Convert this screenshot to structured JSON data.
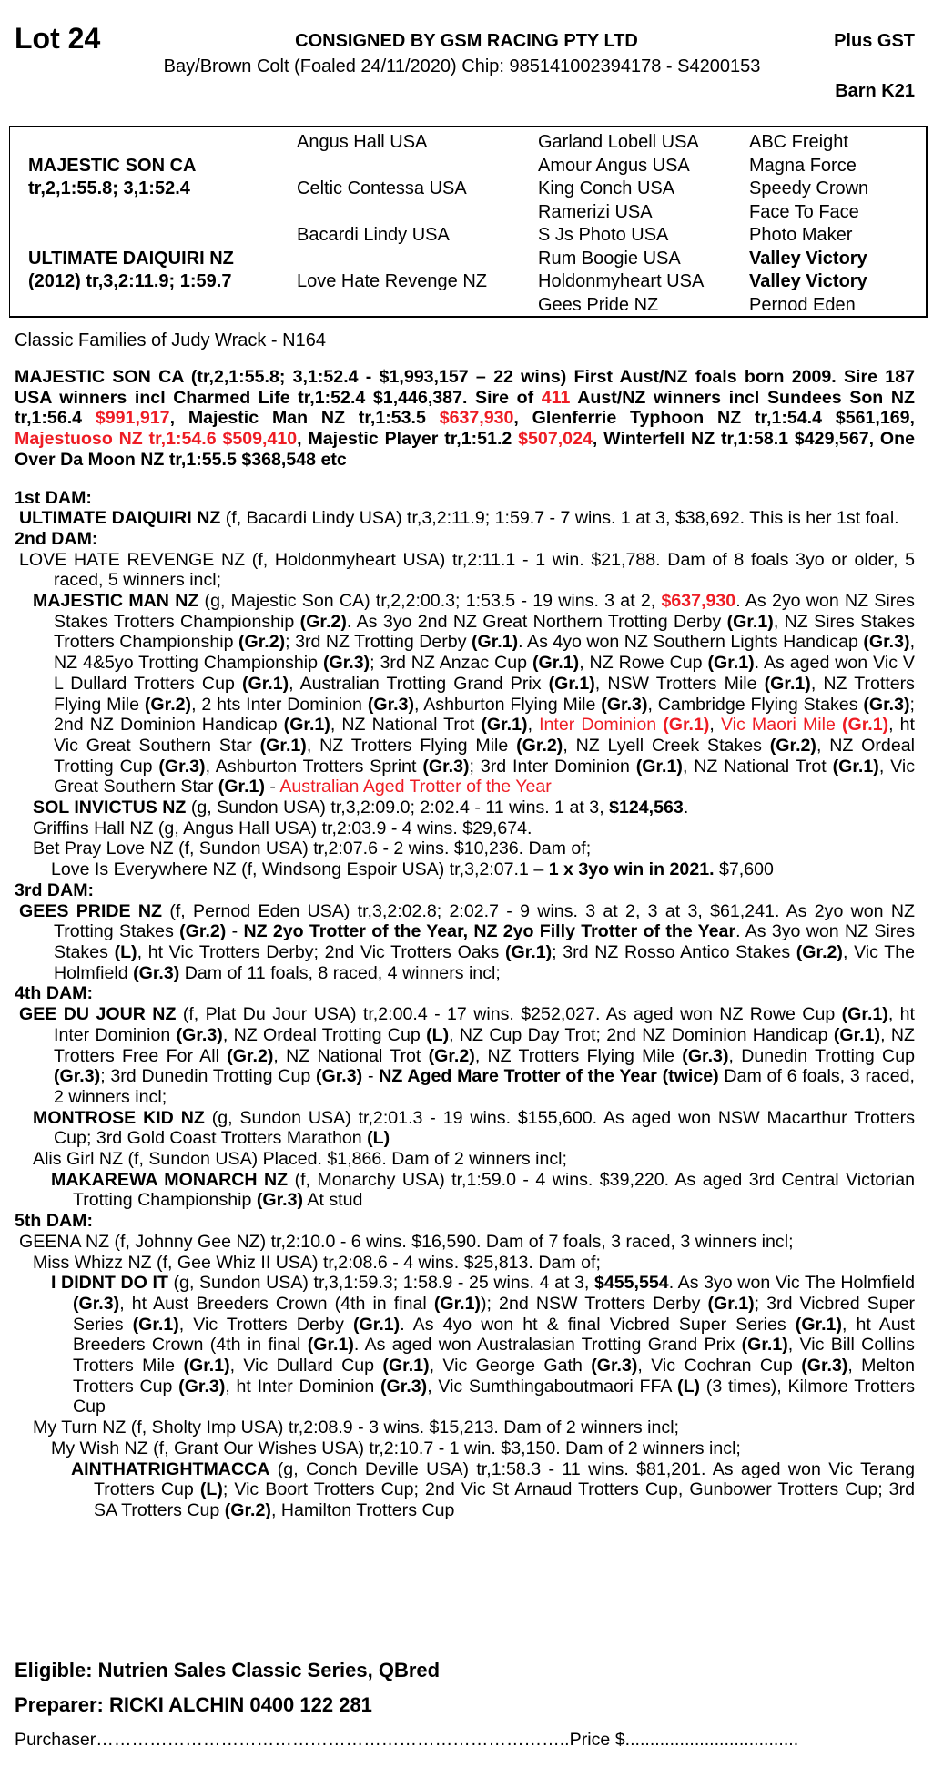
{
  "header": {
    "lot": "Lot 24",
    "consigned": "CONSIGNED BY GSM RACING PTY LTD",
    "plus_gst": "Plus GST",
    "description": "Bay/Brown Colt (Foaled 24/11/2020) Chip: 985141002394178 - S4200153",
    "barn": "Barn K21"
  },
  "pedigree": {
    "sire": {
      "name": "MAJESTIC SON CA",
      "record": "tr,2,1:55.8; 3,1:52.4"
    },
    "dam": {
      "name": "ULTIMATE DAIQUIRI NZ",
      "record": "(2012) tr,3,2:11.9; 1:59.7"
    },
    "gen2": [
      "Angus Hall USA",
      "Celtic Contessa USA",
      "Bacardi Lindy USA",
      "Love Hate Revenge NZ"
    ],
    "gen3": [
      "Garland Lobell USA",
      "Amour Angus USA",
      "King Conch USA",
      "Ramerizi USA",
      "S Js Photo USA",
      "Rum Boogie USA",
      "Holdonmyheart USA",
      "Gees Pride NZ"
    ],
    "gen4": [
      {
        "name": "ABC Freight",
        "bold": false
      },
      {
        "name": "Magna Force",
        "bold": false
      },
      {
        "name": "Speedy Crown",
        "bold": false
      },
      {
        "name": "Face To Face",
        "bold": false
      },
      {
        "name": "Photo Maker",
        "bold": false
      },
      {
        "name": "Valley Victory",
        "bold": true
      },
      {
        "name": "Valley Victory",
        "bold": true
      },
      {
        "name": "Pernod Eden",
        "bold": false
      }
    ]
  },
  "family": "Classic Families of Judy Wrack - N164",
  "sire_paragraph": [
    [
      "MAJESTIC SON CA",
      "b"
    ],
    [
      " (tr,2,1:55.8; 3,1:52.4 - $1,993,157 – 22 wins) ",
      ""
    ],
    [
      "First Aust/NZ foals born 2009. Sire 187 USA winners incl Charmed Life tr,1:52.4 $1,446,387. Sire of ",
      "b"
    ],
    [
      "411",
      "rb"
    ],
    [
      " Aust/NZ winners incl Sundees Son NZ tr,1:56.4 ",
      "b"
    ],
    [
      "$991,917",
      "rb"
    ],
    [
      ", Majestic Man NZ tr,1:53.5 ",
      "b"
    ],
    [
      "$637,930",
      "rb"
    ],
    [
      ", Glenferrie Typhoon NZ tr,1:54.4 $561,169, ",
      "b"
    ],
    [
      "Majestuoso NZ tr,1:54.6 $509,410",
      "rb"
    ],
    [
      ", Majestic Player tr,1:51.2 ",
      "b"
    ],
    [
      "$507,024",
      "rb"
    ],
    [
      ", Winterfell NZ tr,1:58.1 $429,567, One Over Da Moon NZ tr,1:55.5 $368,548 etc",
      "b"
    ]
  ],
  "entries": [
    {
      "level": "h",
      "segments": [
        [
          "1st DAM:",
          "b"
        ]
      ]
    },
    {
      "level": "1",
      "segments": [
        [
          "ULTIMATE DAIQUIRI NZ",
          "b"
        ],
        [
          " (f, Bacardi Lindy USA) tr,3,2:11.9; 1:59.7 - 7 wins. 1 at 3, $38,692. This is her 1st foal.",
          ""
        ]
      ]
    },
    {
      "level": "h",
      "segments": [
        [
          "2nd DAM:",
          "b"
        ]
      ]
    },
    {
      "level": "1",
      "segments": [
        [
          "LOVE HATE REVENGE NZ (f, Holdonmyheart USA) tr,2:11.1 - 1 win. $21,788. Dam of 8 foals 3yo or older, 5 raced, 5 winners incl;",
          ""
        ]
      ]
    },
    {
      "level": "2",
      "segments": [
        [
          "MAJESTIC MAN NZ",
          "b"
        ],
        [
          " (g, Majestic Son CA) tr,2,2:00.3; 1:53.5 - 19 wins. 3 at 2, ",
          ""
        ],
        [
          "$637,930",
          "rb"
        ],
        [
          ". As 2yo won NZ Sires Stakes Trotters Championship ",
          ""
        ],
        [
          "(Gr.2)",
          "b"
        ],
        [
          ". As 3yo 2nd NZ Great Northern Trotting Derby ",
          ""
        ],
        [
          "(Gr.1)",
          "b"
        ],
        [
          ", NZ Sires Stakes Trotters Championship ",
          ""
        ],
        [
          "(Gr.2)",
          "b"
        ],
        [
          "; 3rd NZ Trotting Derby ",
          ""
        ],
        [
          "(Gr.1)",
          "b"
        ],
        [
          ". As 4yo won NZ Southern Lights Handicap ",
          ""
        ],
        [
          "(Gr.3)",
          "b"
        ],
        [
          ", NZ 4&5yo Trotting Championship ",
          ""
        ],
        [
          "(Gr.3)",
          "b"
        ],
        [
          "; 3rd NZ Anzac Cup ",
          ""
        ],
        [
          "(Gr.1)",
          "b"
        ],
        [
          ", NZ Rowe Cup ",
          ""
        ],
        [
          "(Gr.1)",
          "b"
        ],
        [
          ". As aged won Vic V L Dullard Trotters Cup ",
          ""
        ],
        [
          "(Gr.1)",
          "b"
        ],
        [
          ", Australian Trotting Grand Prix ",
          ""
        ],
        [
          "(Gr.1)",
          "b"
        ],
        [
          ", NSW Trotters Mile ",
          ""
        ],
        [
          "(Gr.1)",
          "b"
        ],
        [
          ", NZ Trotters Flying Mile ",
          ""
        ],
        [
          "(Gr.2)",
          "b"
        ],
        [
          ", 2 hts Inter Dominion ",
          ""
        ],
        [
          "(Gr.3)",
          "b"
        ],
        [
          ", Ashburton Flying Mile ",
          ""
        ],
        [
          "(Gr.3)",
          "b"
        ],
        [
          ", Cambridge Flying Stakes ",
          ""
        ],
        [
          "(Gr.3)",
          "b"
        ],
        [
          "; 2nd NZ Dominion Handicap ",
          ""
        ],
        [
          "(Gr.1)",
          "b"
        ],
        [
          ", NZ National Trot ",
          ""
        ],
        [
          "(Gr.1)",
          "b"
        ],
        [
          ", ",
          ""
        ],
        [
          "Inter Dominion ",
          "r"
        ],
        [
          "(Gr.1)",
          "rb"
        ],
        [
          ", ",
          ""
        ],
        [
          "Vic Maori Mile ",
          "r"
        ],
        [
          "(Gr.1)",
          "rb"
        ],
        [
          ", ht Vic Great Southern Star ",
          ""
        ],
        [
          "(Gr.1)",
          "b"
        ],
        [
          ", NZ Trotters Flying Mile ",
          ""
        ],
        [
          "(Gr.2)",
          "b"
        ],
        [
          ", NZ Lyell Creek Stakes ",
          ""
        ],
        [
          "(Gr.2)",
          "b"
        ],
        [
          ", NZ Ordeal Trotting Cup ",
          ""
        ],
        [
          "(Gr.3)",
          "b"
        ],
        [
          ", Ashburton Trotters Sprint ",
          ""
        ],
        [
          "(Gr.3)",
          "b"
        ],
        [
          "; 3rd Inter Dominion ",
          ""
        ],
        [
          "(Gr.1)",
          "b"
        ],
        [
          ", NZ National Trot ",
          ""
        ],
        [
          "(Gr.1)",
          "b"
        ],
        [
          ", Vic Great Southern Star ",
          ""
        ],
        [
          "(Gr.1)",
          "b"
        ],
        [
          " - ",
          ""
        ],
        [
          "Australian Aged Trotter of the Year",
          "r"
        ]
      ]
    },
    {
      "level": "2",
      "segments": [
        [
          "SOL INVICTUS NZ",
          "b"
        ],
        [
          " (g, Sundon USA) tr,3,2:09.0; 2:02.4 - 11 wins. 1 at 3, ",
          ""
        ],
        [
          "$124,563",
          "b"
        ],
        [
          ".",
          ""
        ]
      ]
    },
    {
      "level": "2",
      "segments": [
        [
          "Griffins Hall NZ (g, Angus Hall USA) tr,2:03.9 - 4 wins. $29,674.",
          ""
        ]
      ]
    },
    {
      "level": "2",
      "segments": [
        [
          "Bet Pray Love NZ (f, Sundon USA) tr,2:07.6 - 2 wins. $10,236. Dam of;",
          ""
        ]
      ]
    },
    {
      "level": "3",
      "segments": [
        [
          "Love Is Everywhere NZ (f, Windsong Espoir USA) tr,3,2:07.1 – ",
          ""
        ],
        [
          "1 x 3yo win in 2021.",
          "b"
        ],
        [
          " $7,600",
          ""
        ]
      ]
    },
    {
      "level": "h",
      "segments": [
        [
          "3rd DAM:",
          "b"
        ]
      ]
    },
    {
      "level": "1",
      "segments": [
        [
          "GEES PRIDE NZ",
          "b"
        ],
        [
          " (f, Pernod Eden USA) tr,3,2:02.8; 2:02.7 - 9 wins. 3 at 2, 3 at 3, $61,241. As 2yo won NZ Trotting Stakes ",
          ""
        ],
        [
          "(Gr.2)",
          "b"
        ],
        [
          " - ",
          ""
        ],
        [
          "NZ 2yo Trotter of the Year, NZ 2yo Filly Trotter of the Year",
          "b"
        ],
        [
          ". As 3yo won NZ Sires Stakes ",
          ""
        ],
        [
          "(L)",
          "b"
        ],
        [
          ", ht Vic Trotters Derby; 2nd Vic Trotters Oaks ",
          ""
        ],
        [
          "(Gr.1)",
          "b"
        ],
        [
          "; 3rd NZ Rosso Antico Stakes ",
          ""
        ],
        [
          "(Gr.2)",
          "b"
        ],
        [
          ", Vic The Holmfield ",
          ""
        ],
        [
          "(Gr.3)",
          "b"
        ],
        [
          " Dam of 11 foals, 8 raced, 4 winners incl;",
          ""
        ]
      ]
    },
    {
      "level": "h",
      "segments": [
        [
          "4th DAM:",
          "b"
        ]
      ]
    },
    {
      "level": "1",
      "segments": [
        [
          "GEE DU JOUR NZ",
          "b"
        ],
        [
          " (f, Plat Du Jour USA) tr,2:00.4 - 17 wins. $252,027. As aged won NZ Rowe Cup ",
          ""
        ],
        [
          "(Gr.1)",
          "b"
        ],
        [
          ", ht Inter Dominion ",
          ""
        ],
        [
          "(Gr.3)",
          "b"
        ],
        [
          ", NZ Ordeal Trotting Cup ",
          ""
        ],
        [
          "(L)",
          "b"
        ],
        [
          ", NZ Cup Day Trot; 2nd NZ Dominion Handicap ",
          ""
        ],
        [
          "(Gr.1)",
          "b"
        ],
        [
          ", NZ Trotters Free For All ",
          ""
        ],
        [
          "(Gr.2)",
          "b"
        ],
        [
          ", NZ National Trot ",
          ""
        ],
        [
          "(Gr.2)",
          "b"
        ],
        [
          ", NZ Trotters Flying Mile ",
          ""
        ],
        [
          "(Gr.3)",
          "b"
        ],
        [
          ", Dunedin Trotting Cup ",
          ""
        ],
        [
          "(Gr.3)",
          "b"
        ],
        [
          "; 3rd Dunedin Trotting Cup ",
          ""
        ],
        [
          "(Gr.3)",
          "b"
        ],
        [
          " - ",
          ""
        ],
        [
          "NZ Aged Mare Trotter of the Year (twice)",
          "b"
        ],
        [
          " Dam of 6 foals, 3 raced, 2 winners incl;",
          ""
        ]
      ]
    },
    {
      "level": "2",
      "segments": [
        [
          "MONTROSE KID NZ",
          "b"
        ],
        [
          " (g, Sundon USA) tr,2:01.3 - 19 wins. $155,600. As aged won NSW Macarthur Trotters Cup; 3rd Gold Coast Trotters Marathon ",
          ""
        ],
        [
          "(L)",
          "b"
        ]
      ]
    },
    {
      "level": "2",
      "segments": [
        [
          "Alis Girl NZ (f, Sundon USA) Placed. $1,866. Dam of 2 winners incl;",
          ""
        ]
      ]
    },
    {
      "level": "3",
      "segments": [
        [
          "MAKAREWA MONARCH NZ",
          "b"
        ],
        [
          " (f, Monarchy USA) tr,1:59.0 - 4 wins. $39,220. As aged 3rd Central Victorian Trotting Championship ",
          ""
        ],
        [
          "(Gr.3)",
          "b"
        ],
        [
          " At stud",
          ""
        ]
      ]
    },
    {
      "level": "h",
      "segments": [
        [
          "5th DAM:",
          "b"
        ]
      ]
    },
    {
      "level": "1",
      "segments": [
        [
          "GEENA NZ (f, Johnny Gee NZ) tr,2:10.0 - 6 wins. $16,590. Dam of 7 foals, 3 raced, 3 winners incl;",
          ""
        ]
      ]
    },
    {
      "level": "2",
      "segments": [
        [
          "Miss Whizz NZ (f, Gee Whiz II USA) tr,2:08.6 - 4 wins. $25,813. Dam of;",
          ""
        ]
      ]
    },
    {
      "level": "3",
      "segments": [
        [
          "I DIDNT DO IT",
          "b"
        ],
        [
          " (g, Sundon USA) tr,3,1:59.3; 1:58.9 - 25 wins. 4 at 3, ",
          ""
        ],
        [
          "$455,554",
          "b"
        ],
        [
          ". As 3yo won Vic The Holmfield ",
          ""
        ],
        [
          "(Gr.3)",
          "b"
        ],
        [
          ", ht Aust Breeders Crown (4th in final ",
          ""
        ],
        [
          "(Gr.1)",
          "b"
        ],
        [
          "); 2nd NSW Trotters Derby ",
          ""
        ],
        [
          "(Gr.1)",
          "b"
        ],
        [
          "; 3rd Vicbred Super Series ",
          ""
        ],
        [
          "(Gr.1)",
          "b"
        ],
        [
          ", Vic Trotters Derby ",
          ""
        ],
        [
          "(Gr.1)",
          "b"
        ],
        [
          ". As 4yo won ht & final Vicbred Super Series ",
          ""
        ],
        [
          "(Gr.1)",
          "b"
        ],
        [
          ", ht Aust Breeders Crown (4th in final ",
          ""
        ],
        [
          "(Gr.1)",
          "b"
        ],
        [
          ". As aged won Australasian Trotting Grand Prix ",
          ""
        ],
        [
          "(Gr.1)",
          "b"
        ],
        [
          ", Vic Bill Collins Trotters Mile ",
          ""
        ],
        [
          "(Gr.1)",
          "b"
        ],
        [
          ", Vic Dullard Cup ",
          ""
        ],
        [
          "(Gr.1)",
          "b"
        ],
        [
          ", Vic George Gath ",
          ""
        ],
        [
          "(Gr.3)",
          "b"
        ],
        [
          ", Vic Cochran Cup ",
          ""
        ],
        [
          "(Gr.3)",
          "b"
        ],
        [
          ", Melton Trotters Cup ",
          ""
        ],
        [
          "(Gr.3)",
          "b"
        ],
        [
          ", ht Inter Dominion ",
          ""
        ],
        [
          "(Gr.3)",
          "b"
        ],
        [
          ", Vic Sumthingaboutmaori FFA ",
          ""
        ],
        [
          "(L)",
          "b"
        ],
        [
          " (3 times), Kilmore Trotters Cup",
          ""
        ]
      ]
    },
    {
      "level": "2",
      "segments": [
        [
          "My Turn NZ (f, Sholty Imp USA) tr,2:08.9 - 3 wins. $15,213. Dam of 2 winners incl;",
          ""
        ]
      ]
    },
    {
      "level": "3",
      "segments": [
        [
          "My Wish NZ (f, Grant Our Wishes USA) tr,2:10.7 - 1 win. $3,150. Dam of 2 winners incl;",
          ""
        ]
      ]
    },
    {
      "level": "4",
      "segments": [
        [
          "AINTHATRIGHTMACCA",
          "b"
        ],
        [
          " (g, Conch Deville USA) tr,1:58.3 - 11 wins. $81,201. As aged won Vic Terang Trotters Cup ",
          ""
        ],
        [
          "(L)",
          "b"
        ],
        [
          "; Vic Boort Trotters Cup; 2nd Vic St Arnaud Trotters Cup, Gunbower Trotters Cup; 3rd SA Trotters Cup ",
          ""
        ],
        [
          "(Gr.2)",
          "b"
        ],
        [
          ", Hamilton Trotters Cup",
          ""
        ]
      ]
    }
  ],
  "footer": {
    "eligible": "Eligible: Nutrien Sales Classic Series, QBred",
    "preparer": "Preparer: RICKI ALCHIN 0400 122 281",
    "purchaser_label": "Purchaser……………………………………………………………………..",
    "price_label": "Price $..................................."
  },
  "colors": {
    "highlight_red": "#ee1c24",
    "text": "#000000"
  }
}
